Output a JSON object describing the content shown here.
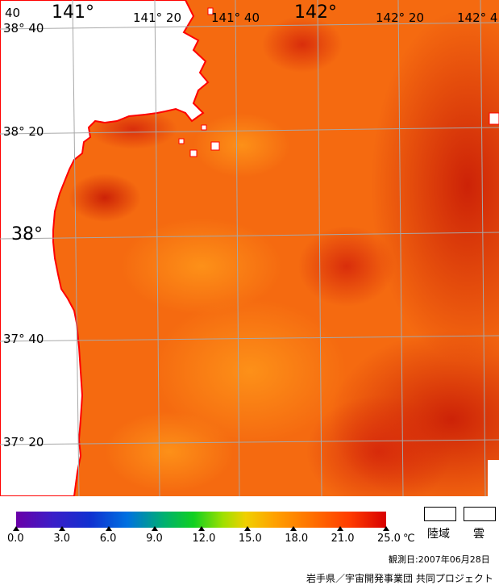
{
  "map": {
    "colors": {
      "land": "#ffffff",
      "coast": "#ff0000",
      "grid": "#a8a8a8",
      "sea_base": "#f56a10",
      "sea_warm": "#d82a06",
      "sea_cool": "#ff8a14"
    },
    "lat_labels": {
      "l3840": "38° 40",
      "l3820": "38° 20",
      "l38": "38°",
      "l3740": "37° 40",
      "l3720": "37° 20"
    },
    "lon_labels": {
      "l141": "141°",
      "l14120": "141° 20",
      "l14140": "141° 40",
      "l142": "142°",
      "l14220": "142° 20",
      "l14240": "142° 4"
    },
    "corner_text": "40"
  },
  "colorbar": {
    "ticks": [
      "0.0",
      "3.0",
      "6.0",
      "9.0",
      "12.0",
      "15.0",
      "18.0",
      "21.0",
      "25.0"
    ],
    "unit": "℃",
    "min": 0.0,
    "max": 25.0
  },
  "legend": {
    "land_label": "陸域",
    "cloud_label": "雲"
  },
  "observation_date": "観測日:2007年06月28日",
  "credit": "岩手県／宇宙開発事業団 共同プロジェクト"
}
